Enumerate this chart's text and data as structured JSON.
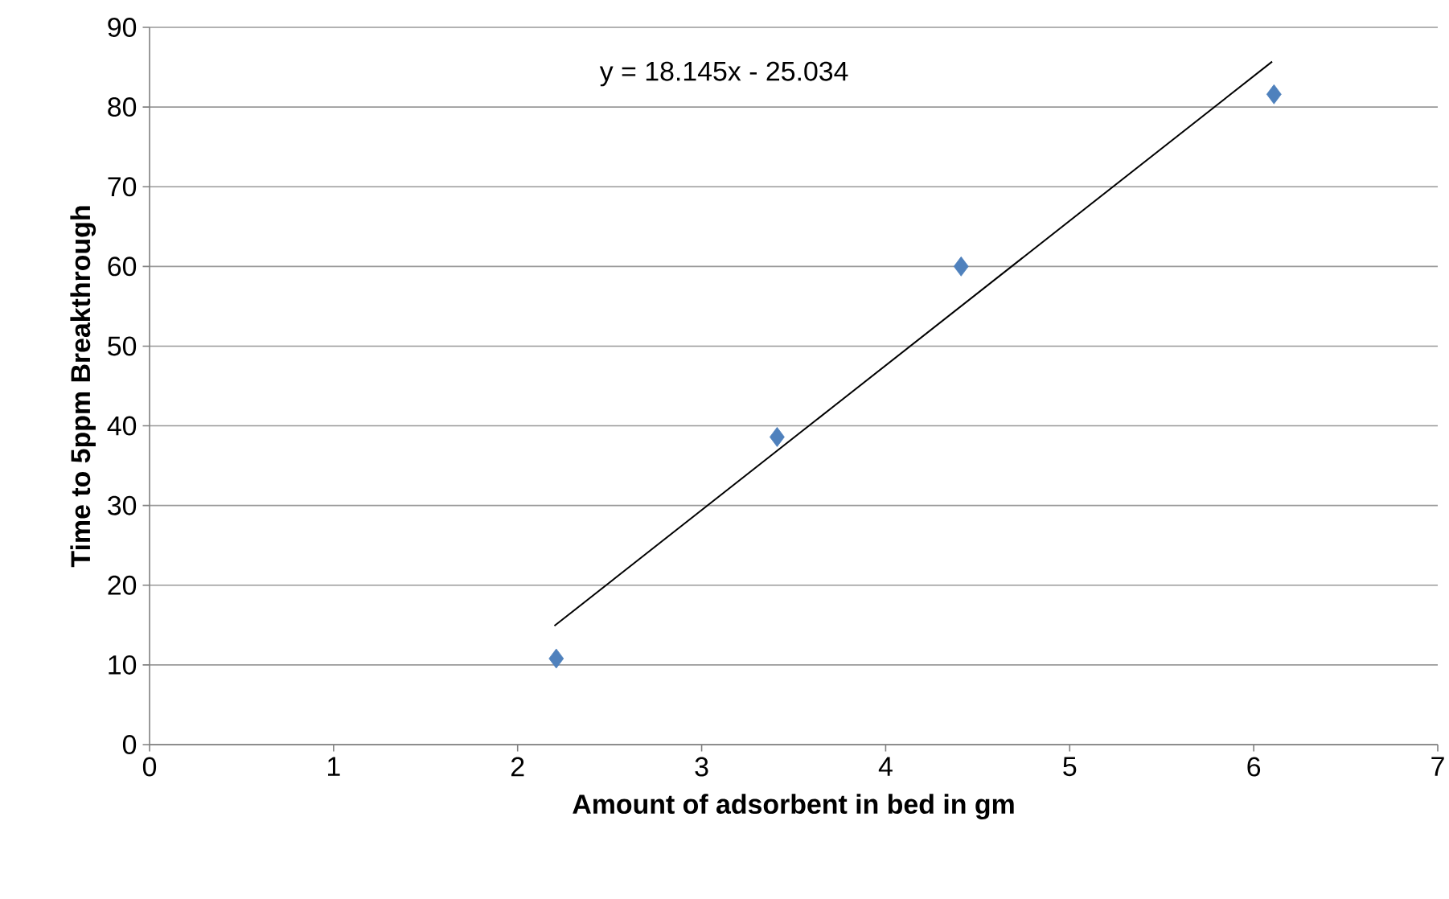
{
  "chart_data": {
    "type": "scatter",
    "xlabel": "Amount of adsorbent  in bed in gm",
    "ylabel": "Time to 5ppm Breakthrough",
    "series": [
      {
        "type": "scatter",
        "color": "#4f81bd",
        "marker": "diamond",
        "x": [
          2.21,
          3.41,
          4.41,
          6.11
        ],
        "values": [
          10.8,
          38.6,
          60,
          81.6
        ]
      },
      {
        "type": "line",
        "color": "#000000",
        "marker": "none",
        "x": [
          2.2,
          6.1
        ],
        "values": [
          14.9,
          85.7
        ]
      }
    ],
    "annotations": [
      "y = 18.145x - 25.034"
    ],
    "xlim": [
      0,
      7
    ],
    "xticks": [
      0,
      1,
      2,
      3,
      4,
      5,
      6,
      7
    ],
    "ylim": [
      0,
      90
    ],
    "yticks": [
      0,
      10,
      20,
      30,
      40,
      50,
      60,
      70,
      80,
      90
    ],
    "grid": "y"
  }
}
